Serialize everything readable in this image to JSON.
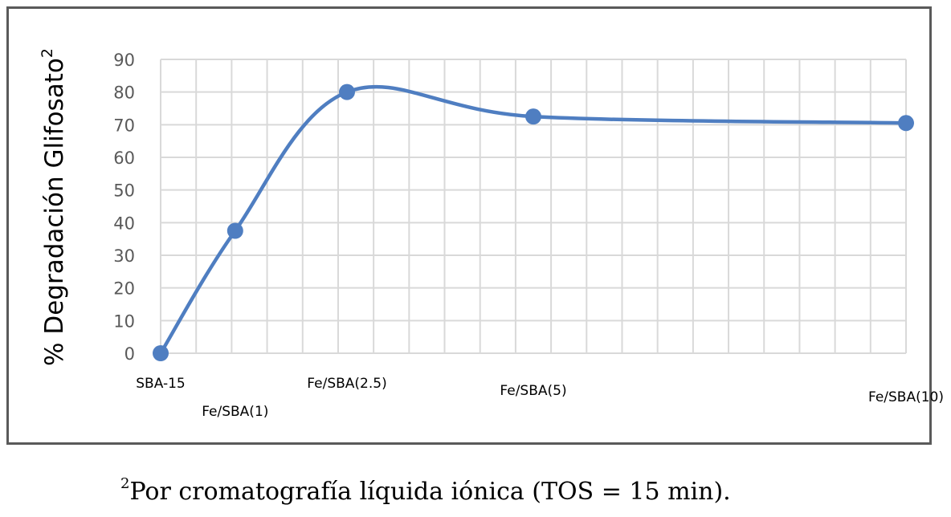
{
  "chart_data": {
    "type": "line",
    "smooth": true,
    "categories": [
      "SBA-15",
      "Fe/SBA(1)",
      "Fe/SBA(2.5)",
      "Fe/SBA(5)",
      "Fe/SBA(10)"
    ],
    "x": [
      0,
      1,
      2.5,
      5,
      10
    ],
    "values": [
      0,
      37.5,
      80,
      72.5,
      70.5
    ],
    "ylabel": "% Degradación Glifosato",
    "ylabel_superscript": "2",
    "xlabel": "",
    "title": "",
    "ylim": [
      0,
      90
    ],
    "yticks": [
      0,
      10,
      20,
      30,
      40,
      50,
      60,
      70,
      80,
      90
    ],
    "xlim": [
      0,
      10
    ],
    "grid": true,
    "legend": "none",
    "series_color": "#4F7EC1",
    "grid_color": "#d9d9d9"
  },
  "footnote": {
    "marker": "2",
    "text": "Por cromatografía líquida iónica (TOS = 15 min)."
  }
}
